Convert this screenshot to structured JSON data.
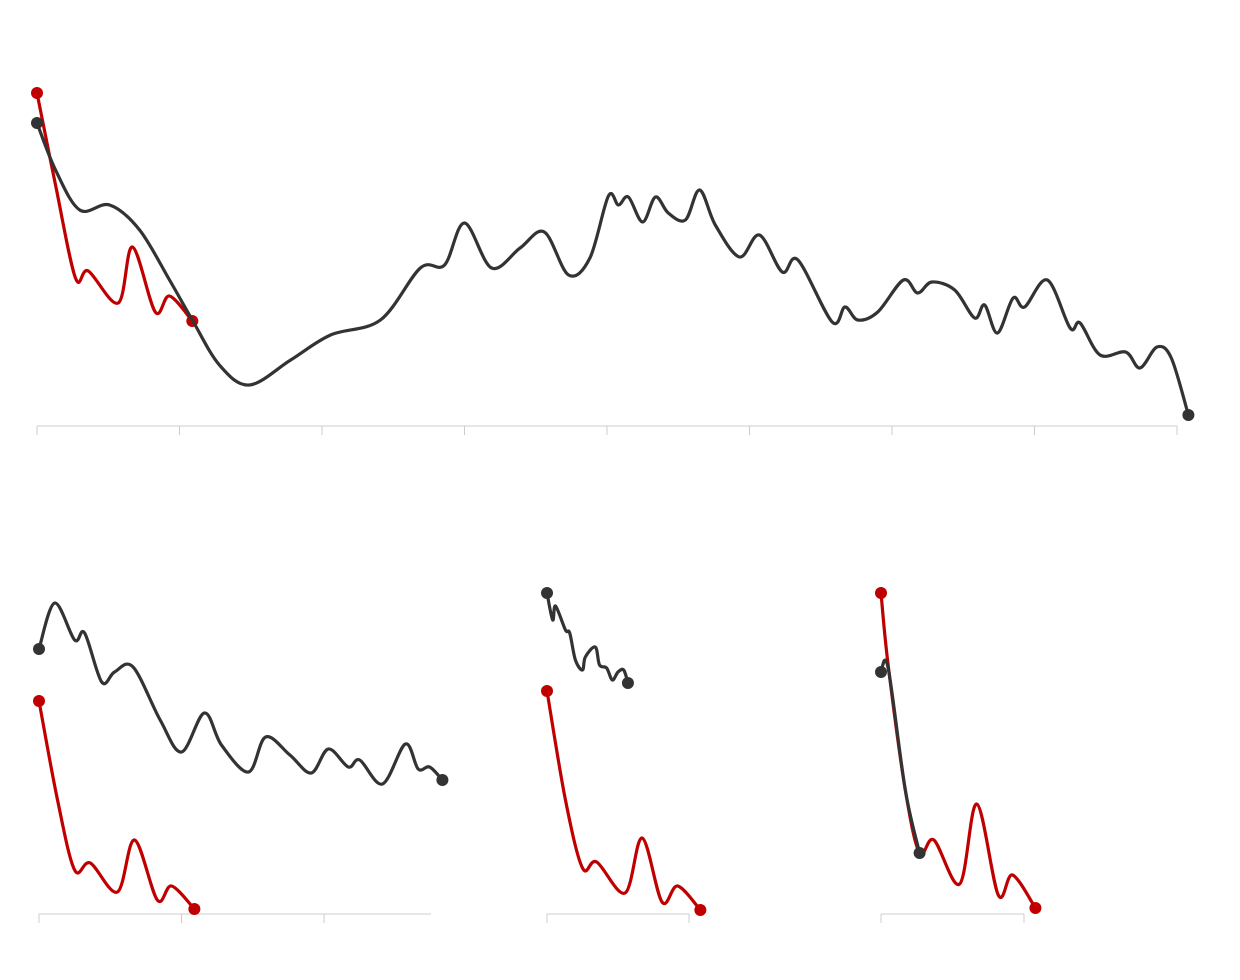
{
  "chart_data": [
    {
      "type": "line",
      "xlim": [
        0,
        8
      ],
      "xticks": [
        0,
        1,
        2,
        3,
        4,
        5,
        6,
        7,
        8
      ],
      "ylim": [
        0,
        340
      ],
      "series": [
        {
          "color": "#c00000",
          "x": [
            0,
            0.13,
            0.27,
            0.36,
            0.57,
            0.67,
            0.83,
            0.93,
            1.09
          ],
          "values": [
            333,
            241,
            148,
            155,
            123,
            179,
            114,
            130,
            105
          ]
        },
        {
          "color": "#333333",
          "x": [
            0,
            0.13,
            0.3,
            0.51,
            0.72,
            0.93,
            1.09,
            1.28,
            1.49,
            1.78,
            2.06,
            2.41,
            2.69,
            2.86,
            3.0,
            3.19,
            3.39,
            3.56,
            3.73,
            3.88,
            4.01,
            4.08,
            4.15,
            4.25,
            4.34,
            4.43,
            4.55,
            4.65,
            4.76,
            4.93,
            5.07,
            5.23,
            5.34,
            5.58,
            5.67,
            5.76,
            5.9,
            6.08,
            6.18,
            6.28,
            6.44,
            6.58,
            6.65,
            6.74,
            6.85,
            6.93,
            7.09,
            7.25,
            7.32,
            7.46,
            7.64,
            7.74,
            7.86,
            7.96,
            8.08
          ],
          "values": [
            303,
            256,
            216,
            221,
            196,
            146,
            106,
            61,
            41,
            66,
            91,
            106,
            158,
            161,
            203,
            158,
            178,
            194,
            151,
            168,
            230,
            221,
            229,
            204,
            229,
            213,
            206,
            236,
            201,
            169,
            191,
            154,
            166,
            104,
            119,
            106,
            114,
            146,
            133,
            144,
            136,
            108,
            121,
            93,
            128,
            119,
            146,
            98,
            103,
            71,
            74,
            58,
            79,
            68,
            11
          ]
        }
      ]
    },
    {
      "type": "line",
      "xlim": [
        0,
        2.75
      ],
      "xticks": [
        0,
        1,
        2
      ],
      "ylim": [
        0,
        340
      ],
      "series": [
        {
          "color": "#c00000",
          "x": [
            0,
            0.13,
            0.25,
            0.36,
            0.55,
            0.67,
            0.83,
            0.93,
            1.09
          ],
          "values": [
            213,
            114,
            44,
            51,
            22,
            74,
            14,
            28,
            5
          ]
        },
        {
          "color": "#333333",
          "x": [
            0,
            0.11,
            0.25,
            0.32,
            0.44,
            0.53,
            0.66,
            0.85,
            1.0,
            1.16,
            1.28,
            1.47,
            1.59,
            1.76,
            1.91,
            2.03,
            2.17,
            2.25,
            2.41,
            2.57,
            2.66,
            2.74,
            2.83
          ],
          "values": [
            265,
            311,
            274,
            281,
            232,
            242,
            247,
            194,
            162,
            201,
            169,
            142,
            177,
            159,
            141,
            165,
            147,
            154,
            130,
            170,
            145,
            147,
            134
          ]
        }
      ]
    },
    {
      "type": "line",
      "xlim": [
        0,
        1
      ],
      "xticks": [
        0,
        1
      ],
      "ylim": [
        0,
        340
      ],
      "series": [
        {
          "color": "#c00000",
          "x": [
            0,
            0.13,
            0.25,
            0.35,
            0.55,
            0.67,
            0.81,
            0.92,
            1.08
          ],
          "values": [
            223,
            114,
            46,
            52,
            21,
            76,
            12,
            28,
            4
          ]
        },
        {
          "color": "#333333",
          "x": [
            0,
            0.04,
            0.06,
            0.13,
            0.16,
            0.2,
            0.25,
            0.27,
            0.34,
            0.37,
            0.42,
            0.46,
            0.5,
            0.54,
            0.57
          ],
          "values": [
            321,
            294,
            308,
            284,
            281,
            254,
            244,
            257,
            267,
            249,
            246,
            234,
            242,
            244,
            231
          ]
        }
      ]
    },
    {
      "type": "line",
      "xlim": [
        0,
        1
      ],
      "xticks": [
        0,
        1
      ],
      "ylim": [
        0,
        340
      ],
      "series": [
        {
          "color": "#c00000",
          "x": [
            0,
            0.05,
            0.17,
            0.27,
            0.37,
            0.55,
            0.67,
            0.82,
            0.92,
            1.08
          ],
          "values": [
            321,
            249,
            124,
            61,
            74,
            30,
            110,
            19,
            39,
            6
          ]
        },
        {
          "color": "#333333",
          "x": [
            0,
            0.05,
            0.17,
            0.27
          ],
          "values": [
            242,
            246,
            124,
            61
          ]
        }
      ]
    }
  ]
}
